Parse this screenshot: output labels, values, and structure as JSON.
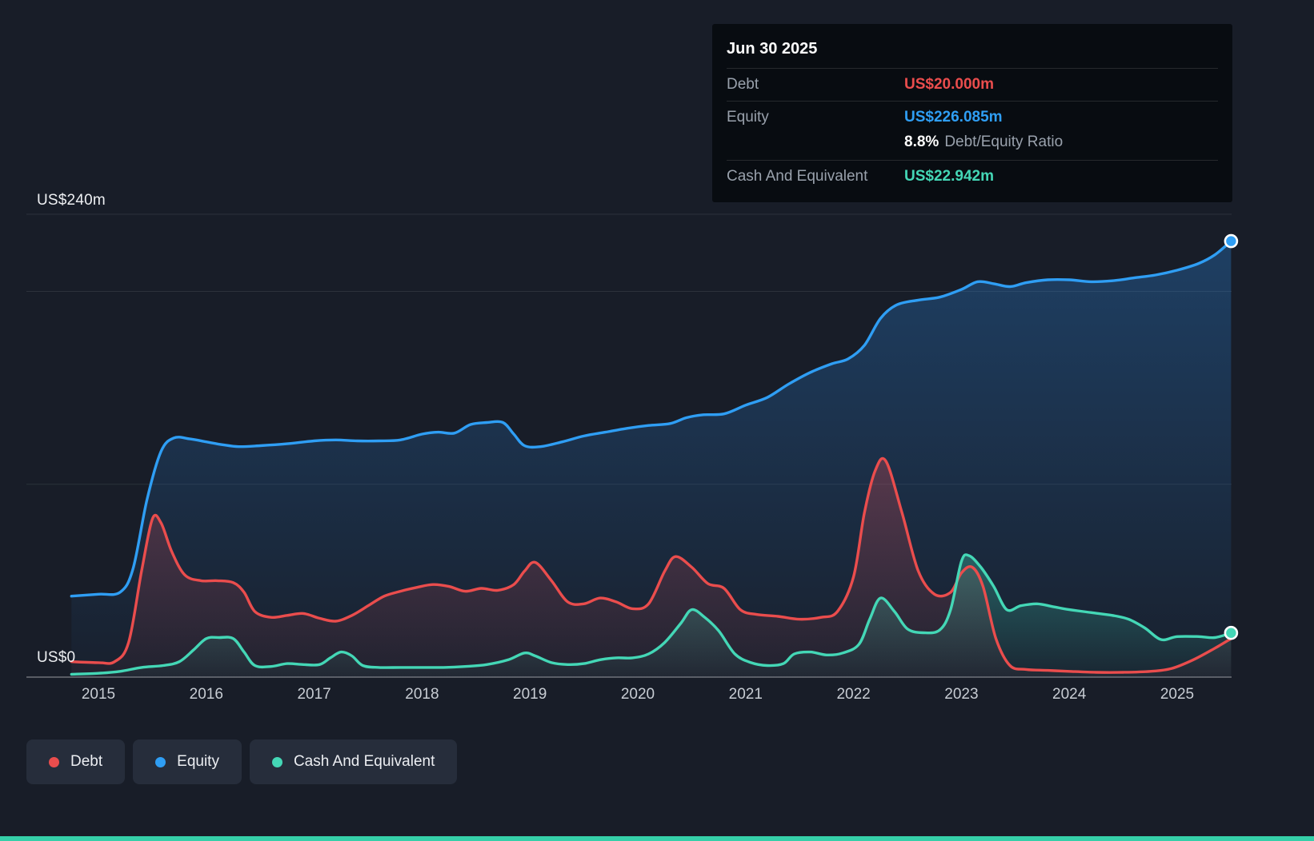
{
  "colors": {
    "background": "#181d28",
    "debt": "#ea4d4d",
    "equity": "#2f9ef4",
    "cash": "#44d7b6",
    "accent_bar": "#35cfa9",
    "tooltip_background": "#090c12",
    "legend_background": "#262d3b"
  },
  "tooltip": {
    "date": "Jun 30 2025",
    "debt_label": "Debt",
    "debt_value": "US$20.000m",
    "equity_label": "Equity",
    "equity_value": "US$226.085m",
    "ratio_value": "8.8%",
    "ratio_label": "Debt/Equity Ratio",
    "cash_label": "Cash And Equivalent",
    "cash_value": "US$22.942m"
  },
  "legend": {
    "items": [
      {
        "label": "Debt",
        "color": "#ea4d4d"
      },
      {
        "label": "Equity",
        "color": "#2f9ef4"
      },
      {
        "label": "Cash And Equivalent",
        "color": "#44d7b6"
      }
    ]
  },
  "chart_data": {
    "type": "area",
    "title": "",
    "x_axis": {
      "unit": "year",
      "ticks": [
        2015,
        2016,
        2017,
        2018,
        2019,
        2020,
        2021,
        2022,
        2023,
        2024,
        2025
      ],
      "range": [
        2014.75,
        2025.5
      ]
    },
    "y_axis": {
      "min": 0,
      "max": 240,
      "unit": "US$ millions",
      "labels": {
        "max": "US$240m",
        "zero": "US$0"
      },
      "gridlines": [
        240,
        200,
        100,
        0
      ]
    },
    "series": [
      {
        "key": "equity",
        "name": "Equity",
        "color": "#2f9ef4",
        "fill_top": "rgba(42,130,215,0.34)",
        "fill_bottom": "rgba(42,130,215,0.03)",
        "end_marker": true,
        "final_value_label": "US$226.085m",
        "points": [
          [
            2014.75,
            42
          ],
          [
            2015.0,
            43
          ],
          [
            2015.2,
            44
          ],
          [
            2015.32,
            56
          ],
          [
            2015.45,
            92
          ],
          [
            2015.58,
            117
          ],
          [
            2015.7,
            124
          ],
          [
            2015.85,
            123.5
          ],
          [
            2016.0,
            122
          ],
          [
            2016.15,
            120.5
          ],
          [
            2016.3,
            119.5
          ],
          [
            2016.5,
            120
          ],
          [
            2016.75,
            121
          ],
          [
            2017.0,
            122.5
          ],
          [
            2017.2,
            123
          ],
          [
            2017.4,
            122.5
          ],
          [
            2017.6,
            122.5
          ],
          [
            2017.8,
            123
          ],
          [
            2018.0,
            126
          ],
          [
            2018.15,
            127
          ],
          [
            2018.3,
            126.5
          ],
          [
            2018.45,
            131
          ],
          [
            2018.6,
            132
          ],
          [
            2018.75,
            132
          ],
          [
            2018.85,
            126
          ],
          [
            2018.95,
            120
          ],
          [
            2019.1,
            119.5
          ],
          [
            2019.3,
            122
          ],
          [
            2019.5,
            125
          ],
          [
            2019.7,
            127
          ],
          [
            2019.9,
            129
          ],
          [
            2020.1,
            130.5
          ],
          [
            2020.3,
            131.5
          ],
          [
            2020.45,
            134.5
          ],
          [
            2020.6,
            136
          ],
          [
            2020.8,
            136.5
          ],
          [
            2021.0,
            141
          ],
          [
            2021.2,
            145
          ],
          [
            2021.4,
            152
          ],
          [
            2021.6,
            158
          ],
          [
            2021.8,
            162.5
          ],
          [
            2021.95,
            165
          ],
          [
            2022.1,
            172
          ],
          [
            2022.25,
            186
          ],
          [
            2022.4,
            193
          ],
          [
            2022.6,
            195.5
          ],
          [
            2022.8,
            197
          ],
          [
            2023.0,
            201
          ],
          [
            2023.15,
            205
          ],
          [
            2023.3,
            204
          ],
          [
            2023.45,
            202.5
          ],
          [
            2023.6,
            204.5
          ],
          [
            2023.8,
            206
          ],
          [
            2024.0,
            206
          ],
          [
            2024.2,
            205
          ],
          [
            2024.4,
            205.5
          ],
          [
            2024.6,
            207
          ],
          [
            2024.8,
            208.5
          ],
          [
            2025.0,
            211
          ],
          [
            2025.2,
            214.5
          ],
          [
            2025.35,
            219
          ],
          [
            2025.5,
            226.085
          ]
        ]
      },
      {
        "key": "debt",
        "name": "Debt",
        "color": "#ea4d4d",
        "fill_top": "rgba(228,75,82,0.30)",
        "fill_bottom": "rgba(228,75,82,0.04)",
        "end_marker": false,
        "final_value_label": "US$20.000m",
        "points": [
          [
            2014.75,
            8
          ],
          [
            2015.0,
            7.5
          ],
          [
            2015.15,
            8
          ],
          [
            2015.28,
            18
          ],
          [
            2015.4,
            55
          ],
          [
            2015.5,
            82
          ],
          [
            2015.58,
            80
          ],
          [
            2015.68,
            65
          ],
          [
            2015.8,
            53
          ],
          [
            2015.95,
            50
          ],
          [
            2016.1,
            50
          ],
          [
            2016.25,
            49
          ],
          [
            2016.35,
            44
          ],
          [
            2016.45,
            34
          ],
          [
            2016.6,
            31
          ],
          [
            2016.75,
            32
          ],
          [
            2016.9,
            33
          ],
          [
            2017.05,
            30.5
          ],
          [
            2017.2,
            29
          ],
          [
            2017.35,
            32
          ],
          [
            2017.5,
            37
          ],
          [
            2017.65,
            42
          ],
          [
            2017.8,
            44.5
          ],
          [
            2017.95,
            46.5
          ],
          [
            2018.1,
            48
          ],
          [
            2018.25,
            47
          ],
          [
            2018.4,
            44.5
          ],
          [
            2018.55,
            46
          ],
          [
            2018.7,
            45
          ],
          [
            2018.85,
            48
          ],
          [
            2018.95,
            55
          ],
          [
            2019.05,
            59.5
          ],
          [
            2019.2,
            50
          ],
          [
            2019.35,
            39
          ],
          [
            2019.5,
            38
          ],
          [
            2019.65,
            41
          ],
          [
            2019.8,
            39
          ],
          [
            2019.95,
            35.5
          ],
          [
            2020.1,
            38
          ],
          [
            2020.25,
            55
          ],
          [
            2020.35,
            62.5
          ],
          [
            2020.5,
            57
          ],
          [
            2020.65,
            48.5
          ],
          [
            2020.8,
            46
          ],
          [
            2020.95,
            35
          ],
          [
            2021.1,
            32.5
          ],
          [
            2021.3,
            31.5
          ],
          [
            2021.5,
            30
          ],
          [
            2021.7,
            31
          ],
          [
            2021.85,
            34
          ],
          [
            2022.0,
            52
          ],
          [
            2022.1,
            85
          ],
          [
            2022.2,
            107
          ],
          [
            2022.3,
            112
          ],
          [
            2022.45,
            85
          ],
          [
            2022.6,
            55
          ],
          [
            2022.75,
            43
          ],
          [
            2022.9,
            44
          ],
          [
            2023.0,
            54
          ],
          [
            2023.1,
            57
          ],
          [
            2023.2,
            47
          ],
          [
            2023.32,
            20
          ],
          [
            2023.45,
            6
          ],
          [
            2023.6,
            4
          ],
          [
            2023.8,
            3.5
          ],
          [
            2024.0,
            3
          ],
          [
            2024.25,
            2.5
          ],
          [
            2024.5,
            2.5
          ],
          [
            2024.75,
            3
          ],
          [
            2024.95,
            4.5
          ],
          [
            2025.15,
            9
          ],
          [
            2025.35,
            15
          ],
          [
            2025.5,
            20
          ]
        ]
      },
      {
        "key": "cash",
        "name": "Cash And Equivalent",
        "color": "#44d7b6",
        "fill_top": "rgba(64,216,182,0.32)",
        "fill_bottom": "rgba(64,216,182,0.03)",
        "end_marker": true,
        "final_value_label": "US$22.942m",
        "points": [
          [
            2014.75,
            1.5
          ],
          [
            2015.0,
            2
          ],
          [
            2015.2,
            3
          ],
          [
            2015.4,
            5
          ],
          [
            2015.6,
            6
          ],
          [
            2015.75,
            8
          ],
          [
            2015.88,
            14
          ],
          [
            2016.0,
            20
          ],
          [
            2016.12,
            20.5
          ],
          [
            2016.25,
            20
          ],
          [
            2016.35,
            13
          ],
          [
            2016.45,
            6
          ],
          [
            2016.6,
            5.5
          ],
          [
            2016.75,
            7
          ],
          [
            2016.9,
            6.5
          ],
          [
            2017.05,
            6.5
          ],
          [
            2017.15,
            10
          ],
          [
            2017.25,
            13
          ],
          [
            2017.35,
            11
          ],
          [
            2017.45,
            6
          ],
          [
            2017.6,
            5
          ],
          [
            2017.8,
            5
          ],
          [
            2018.0,
            5
          ],
          [
            2018.2,
            5
          ],
          [
            2018.4,
            5.5
          ],
          [
            2018.6,
            6.5
          ],
          [
            2018.8,
            9
          ],
          [
            2018.95,
            12.5
          ],
          [
            2019.05,
            11
          ],
          [
            2019.2,
            7.5
          ],
          [
            2019.35,
            6.5
          ],
          [
            2019.5,
            7
          ],
          [
            2019.65,
            9
          ],
          [
            2019.8,
            10
          ],
          [
            2019.95,
            10
          ],
          [
            2020.1,
            12
          ],
          [
            2020.25,
            18
          ],
          [
            2020.4,
            28
          ],
          [
            2020.5,
            35
          ],
          [
            2020.62,
            31
          ],
          [
            2020.75,
            24
          ],
          [
            2020.9,
            12
          ],
          [
            2021.05,
            7.5
          ],
          [
            2021.2,
            6
          ],
          [
            2021.35,
            7
          ],
          [
            2021.45,
            12
          ],
          [
            2021.6,
            13
          ],
          [
            2021.75,
            11.5
          ],
          [
            2021.9,
            12.5
          ],
          [
            2022.05,
            17
          ],
          [
            2022.15,
            30
          ],
          [
            2022.25,
            41
          ],
          [
            2022.38,
            34
          ],
          [
            2022.5,
            25
          ],
          [
            2022.65,
            23
          ],
          [
            2022.8,
            24.5
          ],
          [
            2022.9,
            35
          ],
          [
            2023.0,
            60
          ],
          [
            2023.07,
            63
          ],
          [
            2023.18,
            57
          ],
          [
            2023.3,
            47
          ],
          [
            2023.42,
            35
          ],
          [
            2023.55,
            37
          ],
          [
            2023.7,
            38
          ],
          [
            2023.85,
            36.5
          ],
          [
            2024.0,
            35
          ],
          [
            2024.2,
            33.5
          ],
          [
            2024.4,
            32
          ],
          [
            2024.55,
            30
          ],
          [
            2024.7,
            25.5
          ],
          [
            2024.85,
            19.5
          ],
          [
            2025.0,
            21
          ],
          [
            2025.2,
            21
          ],
          [
            2025.35,
            20.5
          ],
          [
            2025.5,
            22.942
          ]
        ]
      }
    ]
  }
}
